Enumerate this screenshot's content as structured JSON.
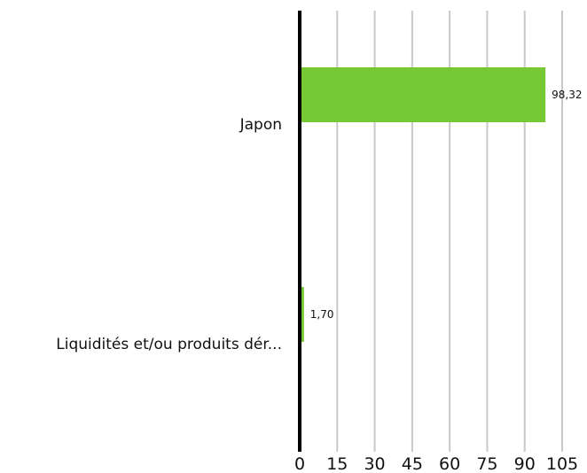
{
  "chart_data": {
    "type": "bar",
    "orientation": "horizontal",
    "categories": [
      "Japon",
      "Liquidités et/ou produits dér..."
    ],
    "values": [
      98.32,
      1.7
    ],
    "data_labels": [
      "98,32",
      "1,70"
    ],
    "xlim": [
      0,
      105
    ],
    "xticks": [
      0,
      15,
      30,
      45,
      60,
      75,
      90,
      105
    ],
    "xtick_labels": [
      "0",
      "15",
      "30",
      "45",
      "60",
      "75",
      "90",
      "105"
    ],
    "grid": true,
    "legend": "none",
    "colors": {
      "bar": "#76c935",
      "grid": "#c8c8c8",
      "axis": "#000000"
    }
  }
}
